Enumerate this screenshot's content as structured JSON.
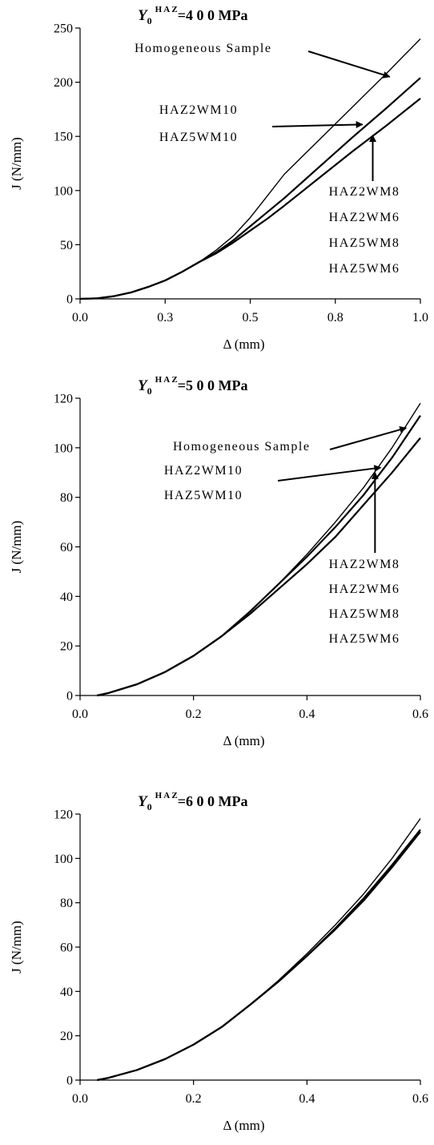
{
  "chart_data": [
    {
      "type": "line",
      "title": {
        "symbol": "Y",
        "sub": "0",
        "sup": "H A Z",
        "rest": "=4 0 0  MPa"
      },
      "xlabel": "Δ (mm)",
      "ylabel": "J (N/mm)",
      "xlim": [
        0,
        1.0
      ],
      "ylim": [
        0,
        250
      ],
      "xticks": [
        0.0,
        0.25,
        0.5,
        0.75,
        1.0
      ],
      "xtick_labels": [
        "0.0",
        "0.3",
        "0.5",
        "0.8",
        "1.0"
      ],
      "yticks": [
        0,
        50,
        100,
        150,
        200,
        250
      ],
      "ytick_labels": [
        "0",
        "50",
        "100",
        "150",
        "200",
        "250"
      ],
      "series": [
        {
          "x": [
            0,
            0.05,
            0.1,
            0.15,
            0.2,
            0.25,
            0.3,
            0.35,
            0.4,
            0.45,
            0.5,
            0.55,
            0.6,
            0.7,
            0.8,
            0.9,
            1.0
          ],
          "y": [
            0,
            0.5,
            2.5,
            6,
            11,
            17,
            25,
            34,
            45,
            58,
            75,
            95,
            115,
            146,
            177,
            208,
            240
          ]
        },
        {
          "x": [
            0,
            0.05,
            0.1,
            0.15,
            0.2,
            0.25,
            0.3,
            0.35,
            0.4,
            0.45,
            0.5,
            0.55,
            0.6,
            0.7,
            0.8,
            0.9,
            1.0
          ],
          "y": [
            0,
            0.5,
            2.5,
            6,
            11,
            17,
            25,
            34,
            43,
            54,
            67,
            80,
            93,
            121,
            149,
            176,
            204
          ]
        },
        {
          "x": [
            0,
            0.05,
            0.1,
            0.15,
            0.2,
            0.25,
            0.3,
            0.35,
            0.4,
            0.45,
            0.5,
            0.55,
            0.6,
            0.7,
            0.8,
            0.9,
            1.0
          ],
          "y": [
            0,
            0.5,
            2.5,
            6,
            11,
            17,
            25,
            34,
            42,
            52,
            63,
            74,
            86,
            111,
            136,
            160,
            185
          ]
        }
      ],
      "annotations": [
        {
          "lines": [
            "Homogeneous Sample"
          ],
          "arrow_to": [
            0.91,
            205
          ]
        },
        {
          "lines": [
            "HAZ2WM10",
            "HAZ5WM10"
          ],
          "arrow_to": [
            0.83,
            161
          ]
        },
        {
          "lines": [
            "HAZ2WM8",
            "HAZ2WM6",
            "HAZ5WM8",
            "HAZ5WM6"
          ],
          "arrow_to": [
            0.86,
            151
          ]
        }
      ]
    },
    {
      "type": "line",
      "title": {
        "symbol": "Y",
        "sub": "0",
        "sup": "H A Z",
        "rest": "=5 0 0  MPa"
      },
      "xlabel": "Δ (mm)",
      "ylabel": "J (N/mm)",
      "xlim": [
        0,
        0.6
      ],
      "ylim": [
        0,
        120
      ],
      "xticks": [
        0.0,
        0.2,
        0.4,
        0.6
      ],
      "xtick_labels": [
        "0.0",
        "0.2",
        "0.4",
        "0.6"
      ],
      "yticks": [
        0,
        20,
        40,
        60,
        80,
        100,
        120
      ],
      "ytick_labels": [
        "0",
        "20",
        "40",
        "60",
        "80",
        "100",
        "120"
      ],
      "series": [
        {
          "x": [
            0.03,
            0.05,
            0.1,
            0.15,
            0.2,
            0.25,
            0.3,
            0.35,
            0.4,
            0.45,
            0.5,
            0.55,
            0.6
          ],
          "y": [
            0,
            1,
            4.5,
            9.5,
            16,
            24,
            34,
            45,
            57,
            70,
            84,
            100,
            118
          ]
        },
        {
          "x": [
            0.03,
            0.05,
            0.1,
            0.15,
            0.2,
            0.25,
            0.3,
            0.35,
            0.4,
            0.45,
            0.5,
            0.55,
            0.6
          ],
          "y": [
            0,
            1,
            4.5,
            9.5,
            16,
            24,
            34,
            45,
            56,
            68,
            81,
            96,
            113
          ]
        },
        {
          "x": [
            0.03,
            0.05,
            0.1,
            0.15,
            0.2,
            0.25,
            0.3,
            0.35,
            0.4,
            0.45,
            0.5,
            0.55,
            0.6
          ],
          "y": [
            0,
            1,
            4.5,
            9.5,
            16,
            24,
            33,
            43,
            53,
            64,
            77,
            90,
            104
          ]
        }
      ],
      "annotations": [
        {
          "lines": [
            "Homogeneous Sample"
          ],
          "arrow_to": [
            0.575,
            108
          ]
        },
        {
          "lines": [
            "HAZ2WM10",
            "HAZ5WM10"
          ],
          "arrow_to": [
            0.53,
            92
          ]
        },
        {
          "lines": [
            "HAZ2WM8",
            "HAZ2WM6",
            "HAZ5WM8",
            "HAZ5WM6"
          ],
          "arrow_to": [
            0.52,
            90
          ]
        }
      ]
    },
    {
      "type": "line",
      "title": {
        "symbol": "Y",
        "sub": "0",
        "sup": "H A Z",
        "rest": "=6 0 0  MPa"
      },
      "xlabel": "Δ (mm)",
      "ylabel": "J (N/mm)",
      "xlim": [
        0,
        0.6
      ],
      "ylim": [
        0,
        120
      ],
      "xticks": [
        0.0,
        0.2,
        0.4,
        0.6
      ],
      "xtick_labels": [
        "0.0",
        "0.2",
        "0.4",
        "0.6"
      ],
      "yticks": [
        0,
        20,
        40,
        60,
        80,
        100,
        120
      ],
      "ytick_labels": [
        "0",
        "20",
        "40",
        "60",
        "80",
        "100",
        "120"
      ],
      "series": [
        {
          "x": [
            0.03,
            0.05,
            0.1,
            0.15,
            0.2,
            0.25,
            0.3,
            0.35,
            0.4,
            0.45,
            0.5,
            0.55,
            0.6
          ],
          "y": [
            0,
            1,
            4.5,
            9.5,
            16,
            24,
            34,
            45,
            57,
            70,
            84,
            100,
            118
          ]
        },
        {
          "x": [
            0.03,
            0.05,
            0.1,
            0.15,
            0.2,
            0.25,
            0.3,
            0.35,
            0.4,
            0.45,
            0.5,
            0.55,
            0.6
          ],
          "y": [
            0,
            1,
            4.5,
            9.5,
            16,
            24,
            34,
            44.5,
            56,
            68.5,
            82,
            97,
            113
          ]
        },
        {
          "x": [
            0.03,
            0.05,
            0.1,
            0.15,
            0.2,
            0.25,
            0.3,
            0.35,
            0.4,
            0.45,
            0.5,
            0.55,
            0.6
          ],
          "y": [
            0,
            1,
            4.5,
            9.5,
            16,
            24,
            34,
            44.5,
            56,
            68,
            81,
            96,
            112
          ]
        }
      ],
      "annotations": []
    }
  ]
}
